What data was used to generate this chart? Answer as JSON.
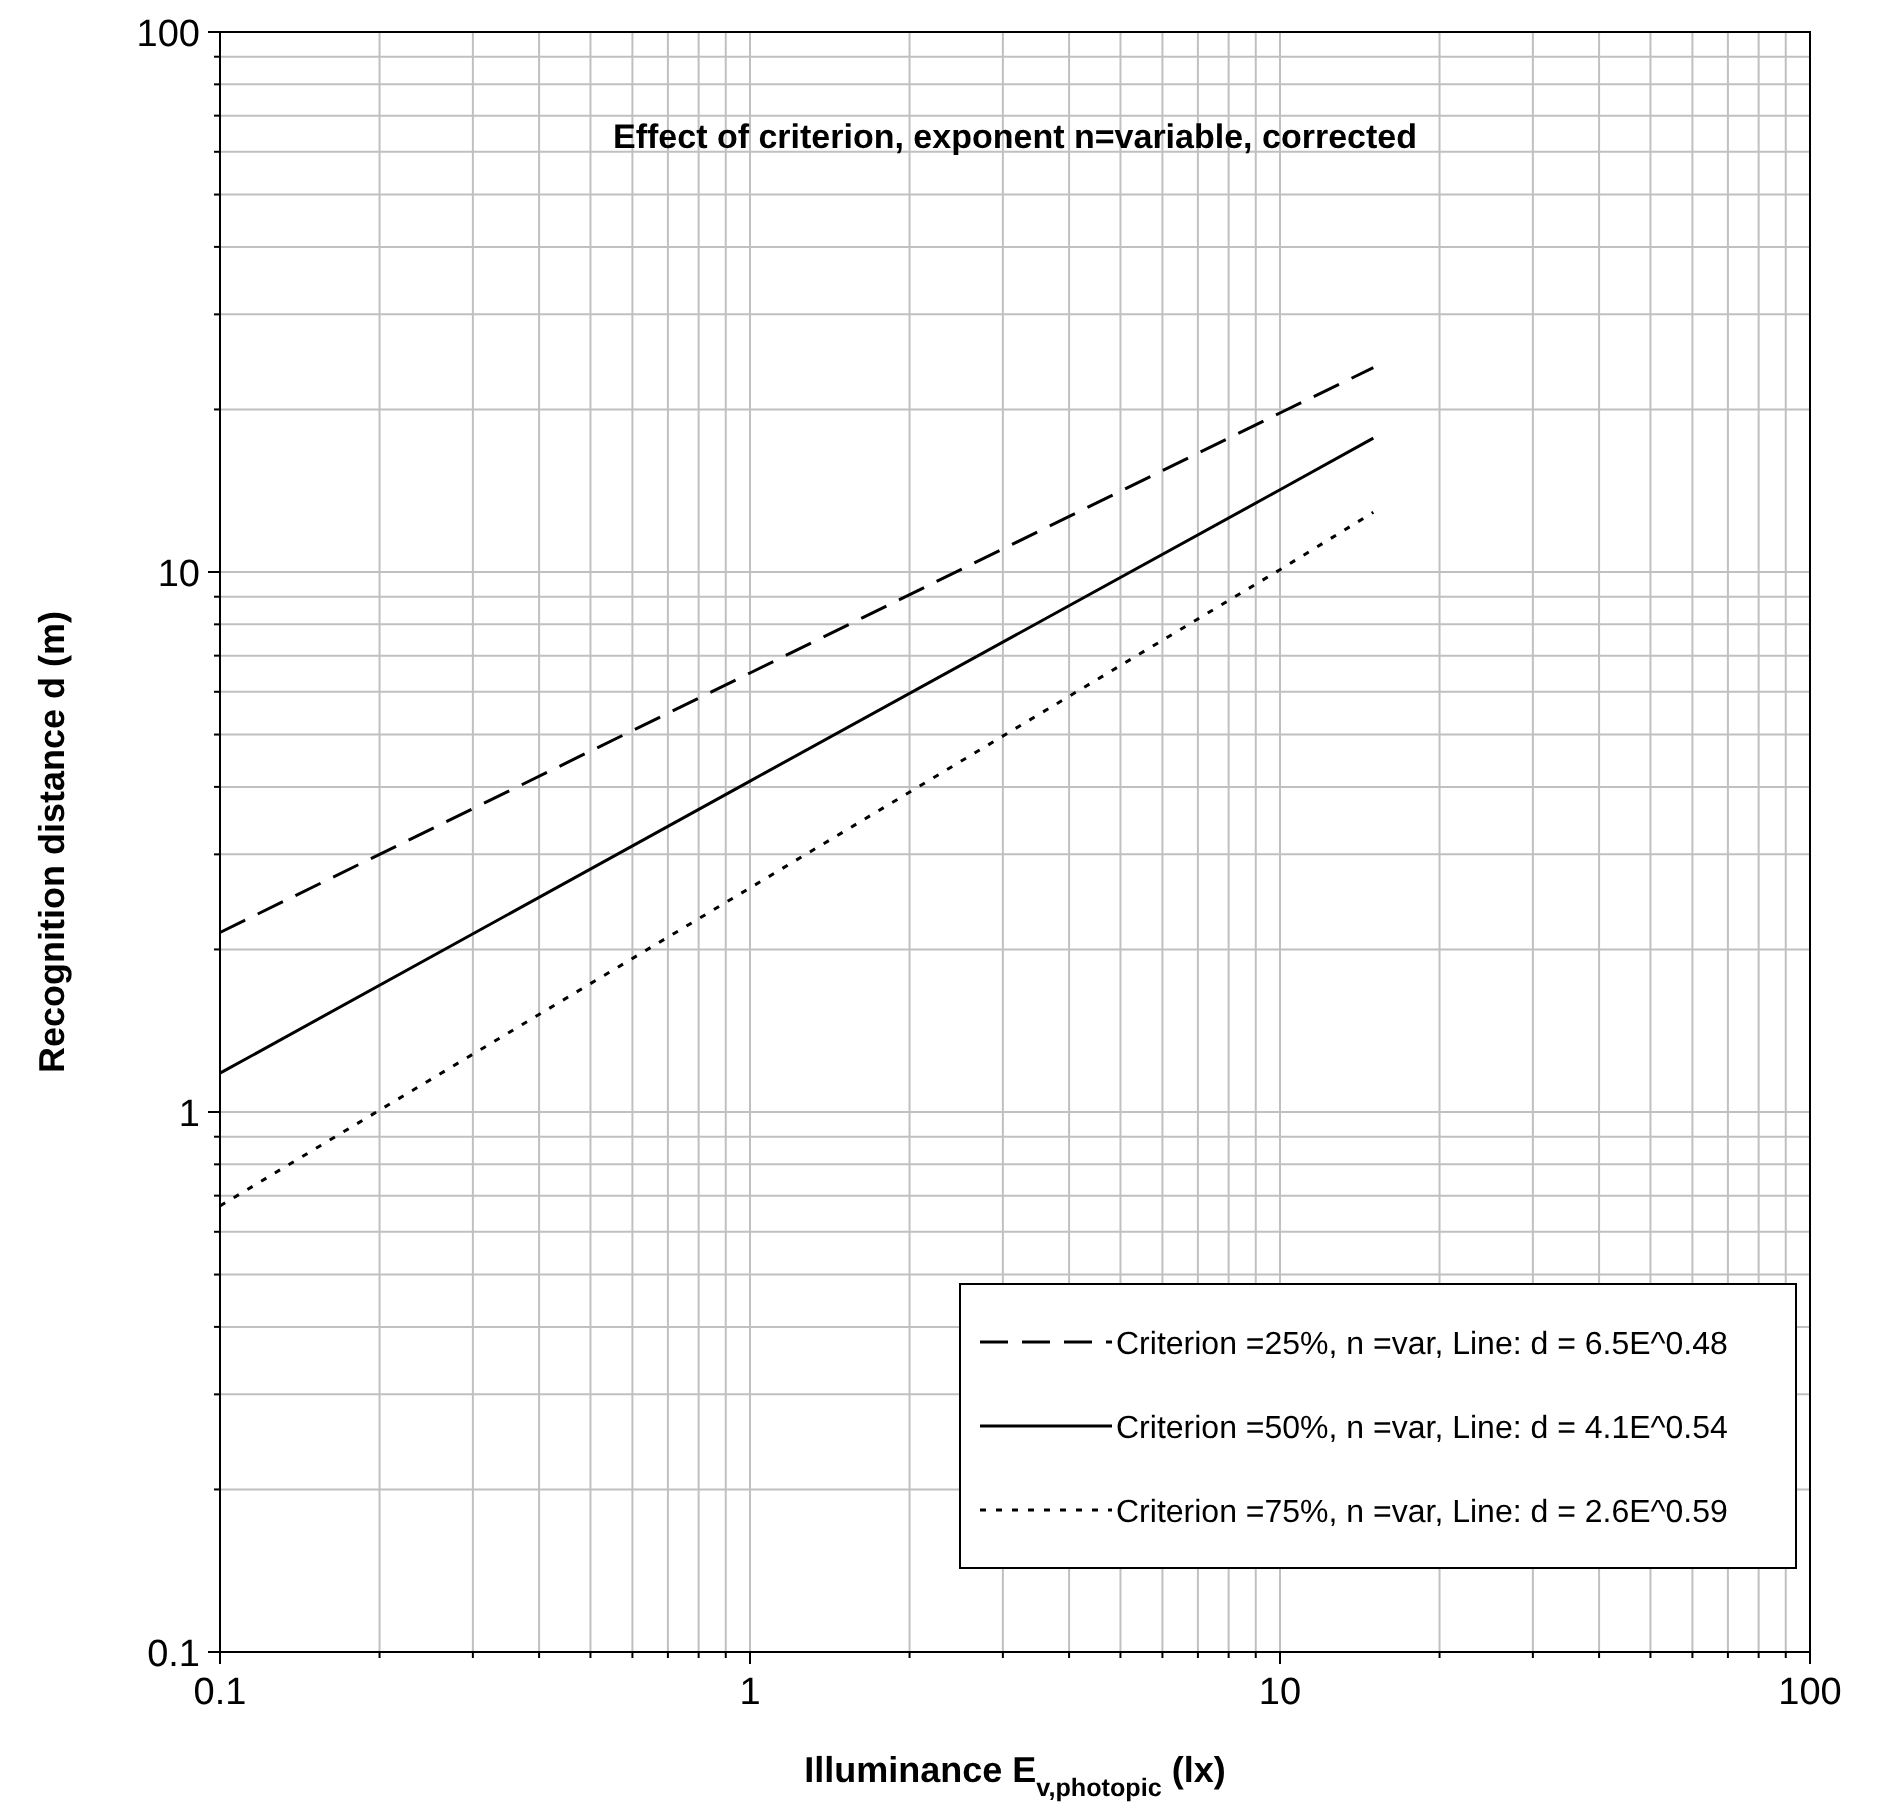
{
  "chart_data": {
    "type": "line",
    "title": "Effect of criterion, exponent n=variable, corrected",
    "xlabel": "Illuminance E$_{v,photopic}$ (lx)",
    "ylabel": "Recognition distance d (m)",
    "log": "xy",
    "grid": true,
    "legend": "bottom right",
    "xlim": [
      0.1,
      100
    ],
    "ylim": [
      0.1,
      100
    ],
    "xticks": [
      0.1,
      {
        "value": 0.2,
        "label": null
      },
      {
        "value": 0.3,
        "label": null
      },
      {
        "value": 0.4,
        "label": null
      },
      {
        "value": 0.5,
        "label": null
      },
      {
        "value": 0.6,
        "label": null
      },
      {
        "value": 0.7,
        "label": null
      },
      {
        "value": 0.8,
        "label": null
      },
      {
        "value": 0.9,
        "label": null
      },
      1,
      {
        "value": 2,
        "label": null
      },
      {
        "value": 3,
        "label": null
      },
      {
        "value": 4,
        "label": null
      },
      {
        "value": 5,
        "label": null
      },
      {
        "value": 6,
        "label": null
      },
      {
        "value": 7,
        "label": null
      },
      {
        "value": 8,
        "label": null
      },
      {
        "value": 9,
        "label": null
      },
      10,
      {
        "value": 20,
        "label": null
      },
      {
        "value": 30,
        "label": null
      },
      {
        "value": 40,
        "label": null
      },
      {
        "value": 50,
        "label": null
      },
      {
        "value": 60,
        "label": null
      },
      {
        "value": 70,
        "label": null
      },
      {
        "value": 80,
        "label": null
      },
      {
        "value": 90,
        "label": null
      },
      100
    ],
    "yticks": [
      0.1,
      {
        "value": 0.2,
        "label": null
      },
      {
        "value": 0.3,
        "label": null
      },
      {
        "value": 0.4,
        "label": null
      },
      {
        "value": 0.5,
        "label": null
      },
      {
        "value": 0.6,
        "label": null
      },
      {
        "value": 0.7,
        "label": null
      },
      {
        "value": 0.8,
        "label": null
      },
      {
        "value": 0.9,
        "label": null
      },
      1,
      {
        "value": 2,
        "label": null
      },
      {
        "value": 3,
        "label": null
      },
      {
        "value": 4,
        "label": null
      },
      {
        "value": 5,
        "label": null
      },
      {
        "value": 6,
        "label": null
      },
      {
        "value": 7,
        "label": null
      },
      {
        "value": 8,
        "label": null
      },
      {
        "value": 9,
        "label": null
      },
      10,
      {
        "value": 20,
        "label": null
      },
      {
        "value": 30,
        "label": null
      },
      {
        "value": 40,
        "label": null
      },
      {
        "value": 50,
        "label": null
      },
      {
        "value": 60,
        "label": null
      },
      {
        "value": 70,
        "label": null
      },
      {
        "value": 80,
        "label": null
      },
      {
        "value": 90,
        "label": null
      },
      100
    ],
    "series": [
      {
        "name": "Criterion =25%, n =var, Line: d = 6.5E^0.48",
        "color": "#000000",
        "line_style": "dashed",
        "x": [
          0.1,
          1,
          10,
          15
        ],
        "values": [
          2.15,
          6.5,
          19.7,
          23.9
        ]
      },
      {
        "name": "Criterion =50%, n =var, Line: d = 4.1E^0.54",
        "color": "#000000",
        "line_style": "solid",
        "x": [
          0.1,
          1,
          10,
          15
        ],
        "values": [
          1.18,
          4.1,
          14.2,
          17.7
        ]
      },
      {
        "name": "Criterion =75%, n =var, Line: d = 2.6E^0.59",
        "color": "#000000",
        "line_style": "dotted",
        "x": [
          0.1,
          1,
          10,
          15
        ],
        "values": [
          0.67,
          2.6,
          10.1,
          12.9
        ]
      }
    ]
  }
}
